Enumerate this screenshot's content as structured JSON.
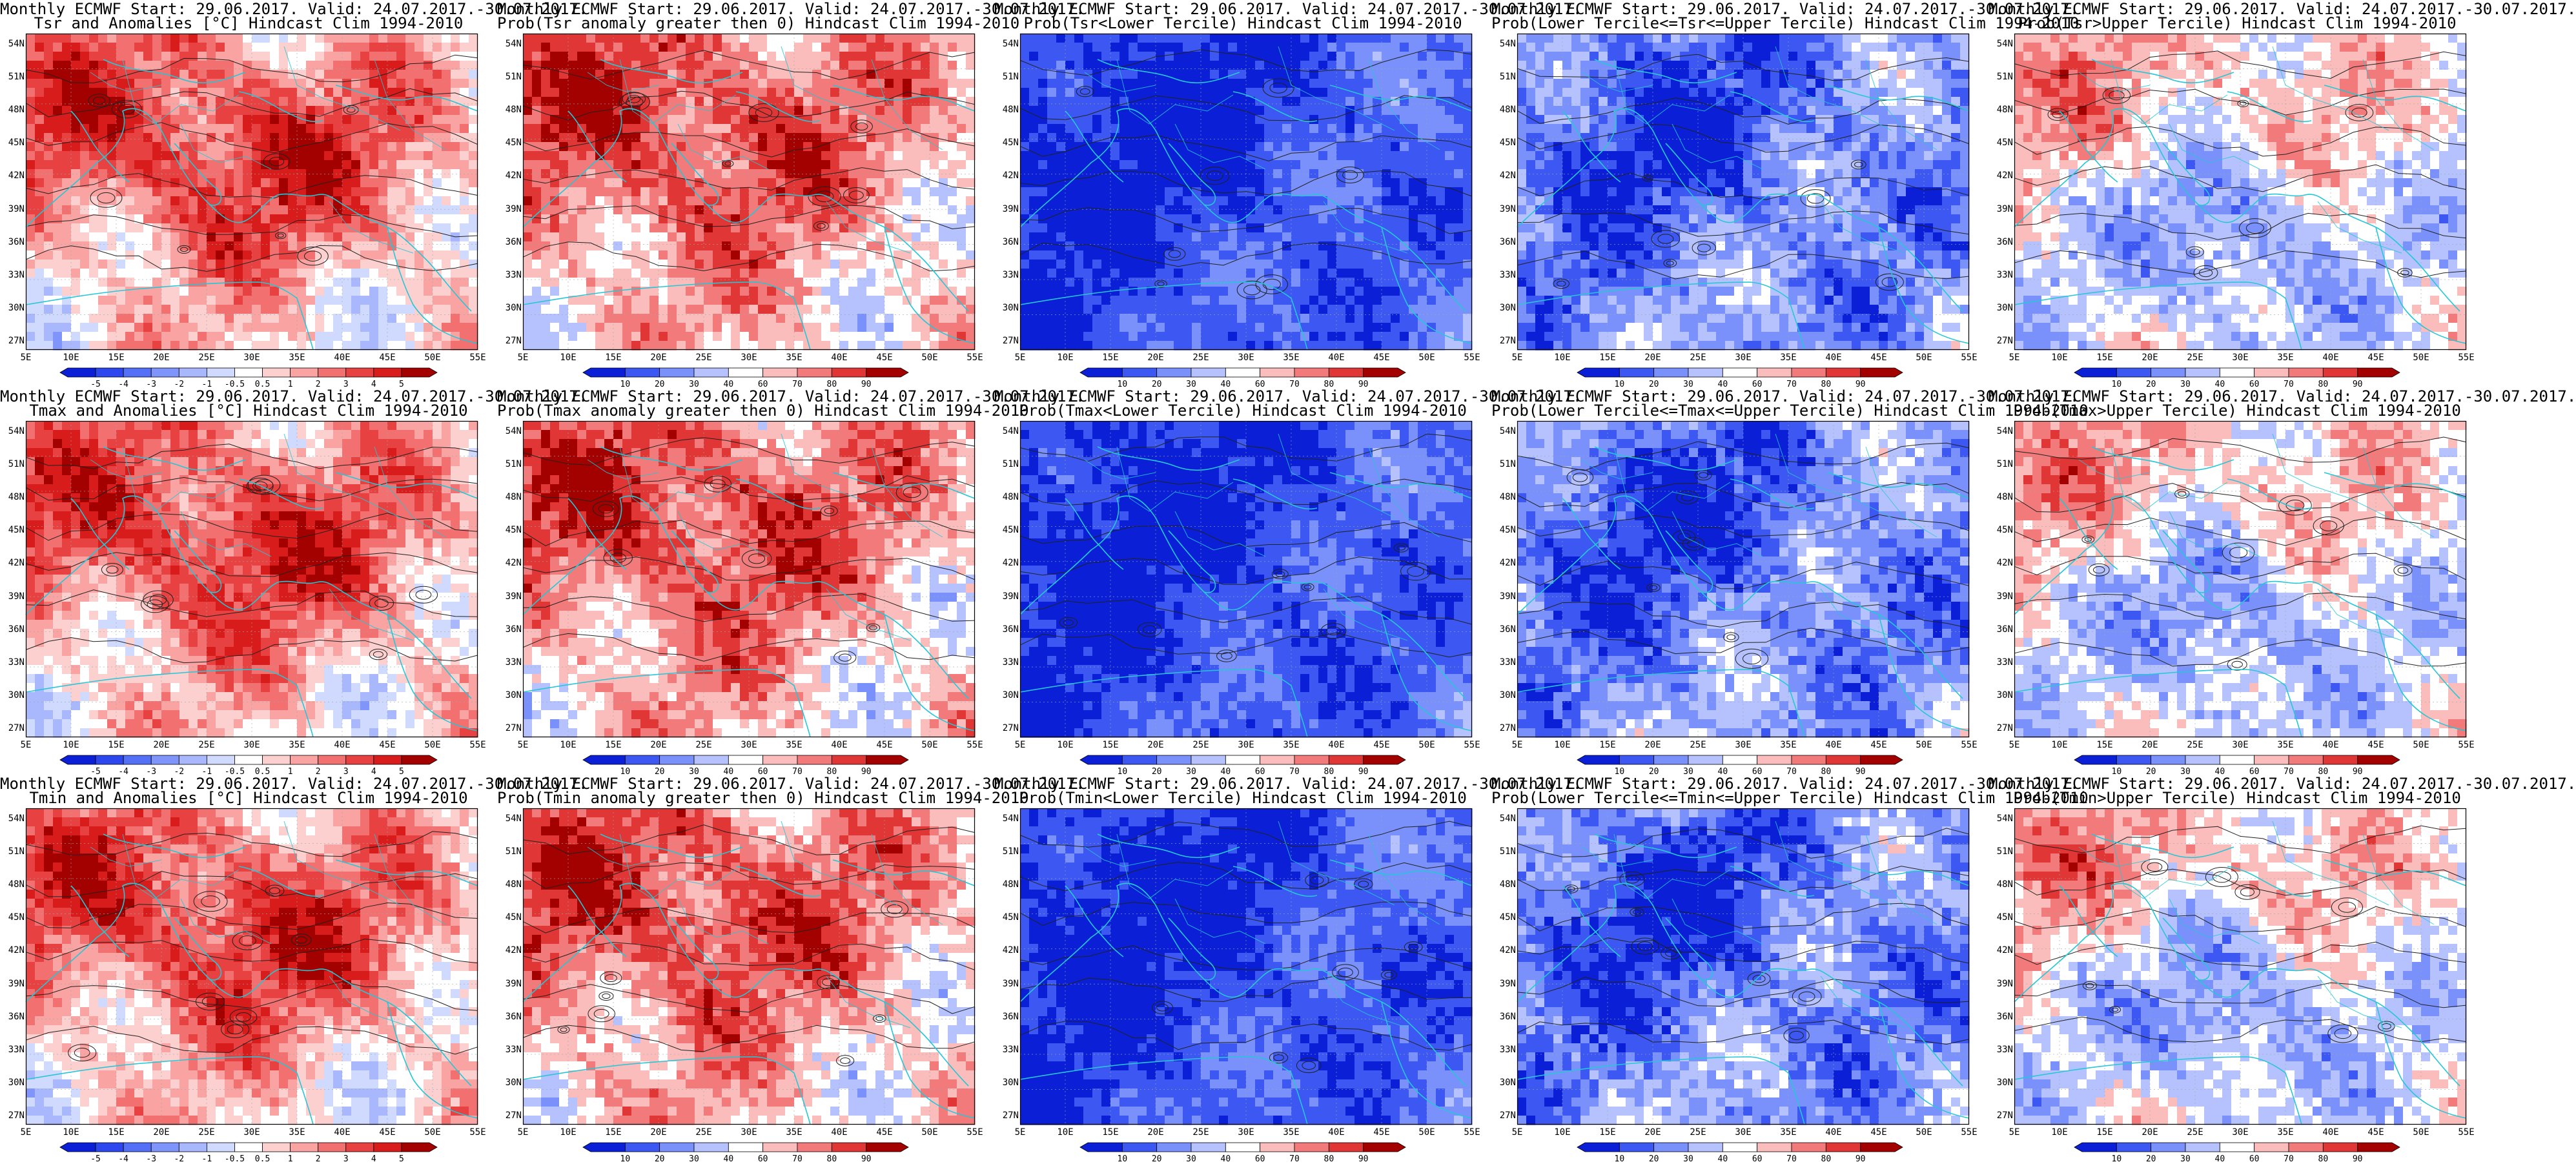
{
  "rows": [
    {
      "variable": "Tsr",
      "panels": [
        {
          "title_line1": "Monthly ECMWF Start: 29.06.2017. Valid: 24.07.2017.-30.07.2017.",
          "title_line2": "Tsr and Anomalies [°C] Hindcast Clim 1994-2010",
          "field_type": "anomaly",
          "colorbar": "anomaly"
        },
        {
          "title_line1": "Monthly ECMWF Start: 29.06.2017. Valid: 24.07.2017.-30.07.2017.",
          "title_line2": "Prob(Tsr anomaly greater then 0) Hindcast Clim 1994-2010",
          "field_type": "prob_positive",
          "colorbar": "probability"
        },
        {
          "title_line1": "Monthly ECMWF Start: 29.06.2017. Valid: 24.07.2017.-30.07.2017.",
          "title_line2": "Prob(Tsr<Lower Tercile) Hindcast Clim 1994-2010",
          "field_type": "prob_lower",
          "colorbar": "probability"
        },
        {
          "title_line1": "Monthly ECMWF Start: 29.06.2017. Valid: 24.07.2017.-30.07.2017.",
          "title_line2": "Prob(Lower Tercile<=Tsr<=Upper Tercile) Hindcast Clim 1994-2010",
          "field_type": "prob_middle",
          "colorbar": "probability"
        },
        {
          "title_line1": "Monthly ECMWF Start: 29.06.2017. Valid: 24.07.2017.-30.07.2017.",
          "title_line2": "Prob(Tsr>Upper Tercile) Hindcast Clim 1994-2010",
          "field_type": "prob_upper",
          "colorbar": "probability"
        }
      ]
    },
    {
      "variable": "Tmax",
      "panels": [
        {
          "title_line1": "Monthly ECMWF Start: 29.06.2017. Valid: 24.07.2017.-30.07.2017.",
          "title_line2": "Tmax and Anomalies [°C] Hindcast Clim 1994-2010",
          "field_type": "anomaly",
          "colorbar": "anomaly"
        },
        {
          "title_line1": "Monthly ECMWF Start: 29.06.2017. Valid: 24.07.2017.-30.07.2017.",
          "title_line2": "Prob(Tmax anomaly greater then 0) Hindcast Clim 1994-2010",
          "field_type": "prob_positive",
          "colorbar": "probability"
        },
        {
          "title_line1": "Monthly ECMWF Start: 29.06.2017. Valid: 24.07.2017.-30.07.2017.",
          "title_line2": "Prob(Tmax<Lower Tercile) Hindcast Clim 1994-2010",
          "field_type": "prob_lower",
          "colorbar": "probability"
        },
        {
          "title_line1": "Monthly ECMWF Start: 29.06.2017. Valid: 24.07.2017.-30.07.2017.",
          "title_line2": "Prob(Lower Tercile<=Tmax<=Upper Tercile) Hindcast Clim 1994-2010",
          "field_type": "prob_middle",
          "colorbar": "probability"
        },
        {
          "title_line1": "Monthly ECMWF Start: 29.06.2017. Valid: 24.07.2017.-30.07.2017.",
          "title_line2": "Prob(Tmax>Upper Tercile) Hindcast Clim 1994-2010",
          "field_type": "prob_upper",
          "colorbar": "probability"
        }
      ]
    },
    {
      "variable": "Tmin",
      "panels": [
        {
          "title_line1": "Monthly ECMWF Start: 29.06.2017. Valid: 24.07.2017.-30.07.2017.",
          "title_line2": "Tmin and Anomalies [°C] Hindcast Clim 1994-2010",
          "field_type": "anomaly",
          "colorbar": "anomaly"
        },
        {
          "title_line1": "Monthly ECMWF Start: 29.06.2017. Valid: 24.07.2017.-30.07.2017.",
          "title_line2": "Prob(Tmin anomaly greater then 0) Hindcast Clim 1994-2010",
          "field_type": "prob_positive",
          "colorbar": "probability"
        },
        {
          "title_line1": "Monthly ECMWF Start: 29.06.2017. Valid: 24.07.2017.-30.07.2017.",
          "title_line2": "Prob(Tmin<Lower Tercile) Hindcast Clim 1994-2010",
          "field_type": "prob_lower",
          "colorbar": "probability"
        },
        {
          "title_line1": "Monthly ECMWF Start: 29.06.2017. Valid: 24.07.2017.-30.07.2017.",
          "title_line2": "Prob(Lower Tercile<=Tmin<=Upper Tercile) Hindcast Clim 1994-2010",
          "field_type": "prob_middle",
          "colorbar": "probability"
        },
        {
          "title_line1": "Monthly ECMWF Start: 29.06.2017. Valid: 24.07.2017.-30.07.2017.",
          "title_line2": "Prob(Tmin>Upper Tercile) Hindcast Clim 1994-2010",
          "field_type": "prob_upper",
          "colorbar": "probability"
        }
      ]
    }
  ],
  "lat_labels": [
    "54N",
    "51N",
    "48N",
    "45N",
    "42N",
    "39N",
    "36N",
    "33N",
    "30N",
    "27N"
  ],
  "lon_labels": [
    "5E",
    "10E",
    "15E",
    "20E",
    "25E",
    "30E",
    "35E",
    "40E",
    "45E",
    "50E",
    "55E"
  ],
  "colorbars": {
    "anomaly": {
      "ticks": [
        "-5",
        "-4",
        "-3",
        "-2",
        "-1",
        "-0.5",
        "0.5",
        "1",
        "2",
        "3",
        "4",
        "5"
      ],
      "colors": [
        "#0a1fd6",
        "#2d47ee",
        "#5470f7",
        "#7f95fb",
        "#a9b7fd",
        "#d0d9fe",
        "#ffffff",
        "#fdd0d0",
        "#f9a3a3",
        "#f27070",
        "#e84141",
        "#d81b1b",
        "#a30000"
      ]
    },
    "probability": {
      "ticks": [
        "10",
        "20",
        "30",
        "40",
        "60",
        "70",
        "80",
        "90"
      ],
      "colors": [
        "#0a1fd6",
        "#3d57f2",
        "#7a90fb",
        "#b6c2fd",
        "#ffffff",
        "#fbbcbc",
        "#f27a7a",
        "#e13636",
        "#a30000"
      ]
    }
  },
  "colors": {
    "coastline": "#25c7d6",
    "contour": "#222222",
    "background": "#ffffff"
  }
}
